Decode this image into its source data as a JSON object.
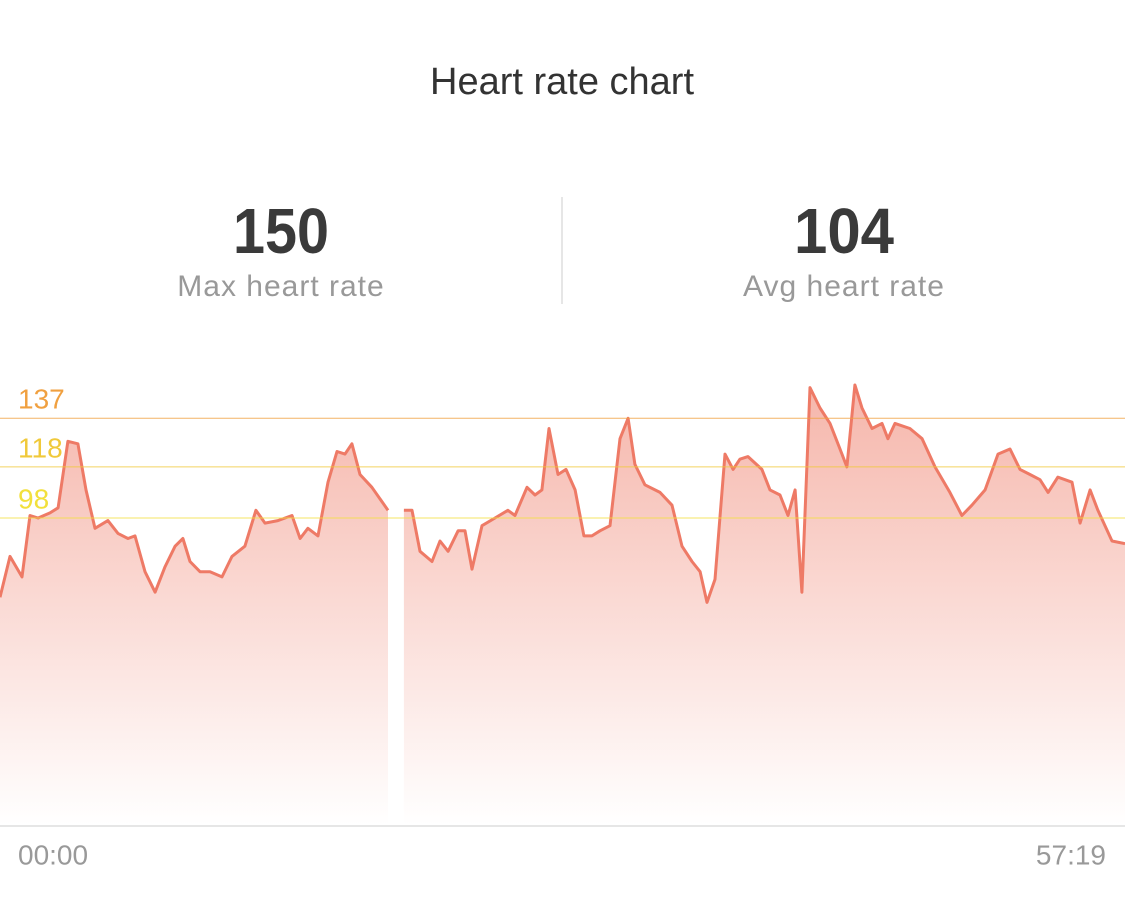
{
  "chart_data": {
    "type": "area",
    "title": "Heart rate chart",
    "stats": [
      {
        "value": 150,
        "label": "Max heart rate"
      },
      {
        "value": 104,
        "label": "Avg heart rate"
      }
    ],
    "x": [
      0,
      0.51,
      1.12,
      1.53,
      1.94,
      2.55,
      2.96,
      3.46,
      3.97,
      4.38,
      4.84,
      5.5,
      6.01,
      6.52,
      6.88,
      7.39,
      7.9,
      8.41,
      8.92,
      9.32,
      9.68,
      10.19,
      10.7,
      11.31,
      11.82,
      12.48,
      13.04,
      13.5,
      14.16,
      14.88,
      15.29,
      15.69,
      16.2,
      16.71,
      17.17,
      17.58,
      17.93,
      18.34,
      18.95,
      19.77,
      20.18,
      20.58,
      20.99,
      21.4,
      22.01,
      22.42,
      22.83,
      23.34,
      23.69,
      24.05,
      24.56,
      25.22,
      25.88,
      26.24,
      26.85,
      27.26,
      27.61,
      27.97,
      28.43,
      28.84,
      29.3,
      29.75,
      30.16,
      30.57,
      31.08,
      31.59,
      32.0,
      32.35,
      32.86,
      33.63,
      34.24,
      34.75,
      35.26,
      35.67,
      36.02,
      36.43,
      36.94,
      37.35,
      37.7,
      38.11,
      38.82,
      39.23,
      39.74,
      40.15,
      40.51,
      40.86,
      41.27,
      41.78,
      42.29,
      42.8,
      43.15,
      43.56,
      43.92,
      44.43,
      44.94,
      45.24,
      45.6,
      46.36,
      46.98,
      47.64,
      48.4,
      49.01,
      49.52,
      50.19,
      50.85,
      51.46,
      51.97,
      52.48,
      52.99,
      53.4,
      53.9,
      54.62,
      55.03,
      55.54,
      55.94,
      56.66,
      57.32
    ],
    "values": [
      67,
      83,
      75,
      99,
      98,
      100,
      102,
      128,
      127,
      109,
      94,
      97,
      92,
      90,
      91,
      77,
      69,
      79,
      87,
      90,
      81,
      77,
      77,
      75,
      83,
      87,
      101,
      96,
      97,
      99,
      90,
      94,
      91,
      112,
      124,
      123,
      127,
      115,
      110,
      101,
      null,
      101,
      101,
      85,
      81,
      89,
      85,
      93,
      93,
      78,
      95,
      98,
      101,
      99,
      110,
      107,
      109,
      133,
      115,
      117,
      109,
      91,
      91,
      93,
      95,
      129,
      137,
      119,
      111,
      108,
      103,
      87,
      81,
      77,
      65,
      74,
      123,
      117,
      121,
      122,
      117,
      109,
      107,
      99,
      109,
      69,
      149,
      141,
      135,
      125,
      118,
      150,
      141,
      133,
      135,
      129,
      135,
      133,
      129,
      118,
      108,
      99,
      103,
      109,
      123,
      125,
      117,
      115,
      113,
      108,
      114,
      112,
      96,
      109,
      101,
      89,
      88
    ],
    "color": "#ee7a66",
    "xlim": [
      0,
      57.32
    ],
    "xticks": [
      {
        "value": 0,
        "label": "00:00"
      },
      {
        "value": 57.32,
        "label": "57:19"
      }
    ],
    "ylim": [
      -22,
      150
    ],
    "yticks": [
      98,
      118,
      137
    ],
    "ytick_colors": [
      "#f2e03c",
      "#f0c93a",
      "#f0a040"
    ]
  }
}
